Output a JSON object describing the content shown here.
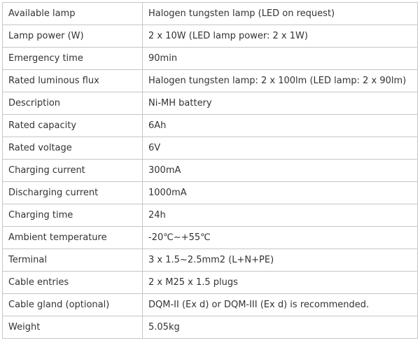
{
  "table": {
    "colors": {
      "border": "#c6c6c6",
      "text": "#333333",
      "background": "#ffffff"
    },
    "rows": [
      {
        "label": "Available lamp",
        "value": "Halogen tungsten lamp (LED on request)"
      },
      {
        "label": "Lamp power (W)",
        "value": "2 x 10W (LED lamp power: 2 x 1W)"
      },
      {
        "label": "Emergency time",
        "value": "90min"
      },
      {
        "label": "Rated luminous flux",
        "value": "Halogen tungsten lamp: 2 x 100lm (LED lamp: 2 x 90lm)"
      },
      {
        "label": "Description",
        "value": "Ni-MH battery"
      },
      {
        "label": "Rated capacity",
        "value": "6Ah"
      },
      {
        "label": "Rated voltage",
        "value": "6V"
      },
      {
        "label": "Charging current",
        "value": "300mA"
      },
      {
        "label": "Discharging current",
        "value": "1000mA"
      },
      {
        "label": "Charging time",
        "value": "24h"
      },
      {
        "label": "Ambient temperature",
        "value": "-20℃~+55℃"
      },
      {
        "label": "Terminal",
        "value": "3 x 1.5~2.5mm2 (L+N+PE)"
      },
      {
        "label": "Cable entries",
        "value": "2 x M25 x 1.5 plugs"
      },
      {
        "label": "Cable gland (optional)",
        "value": "DQM-II (Ex d) or DQM-III (Ex d) is recommended."
      },
      {
        "label": "Weight",
        "value": "5.05kg"
      }
    ]
  }
}
